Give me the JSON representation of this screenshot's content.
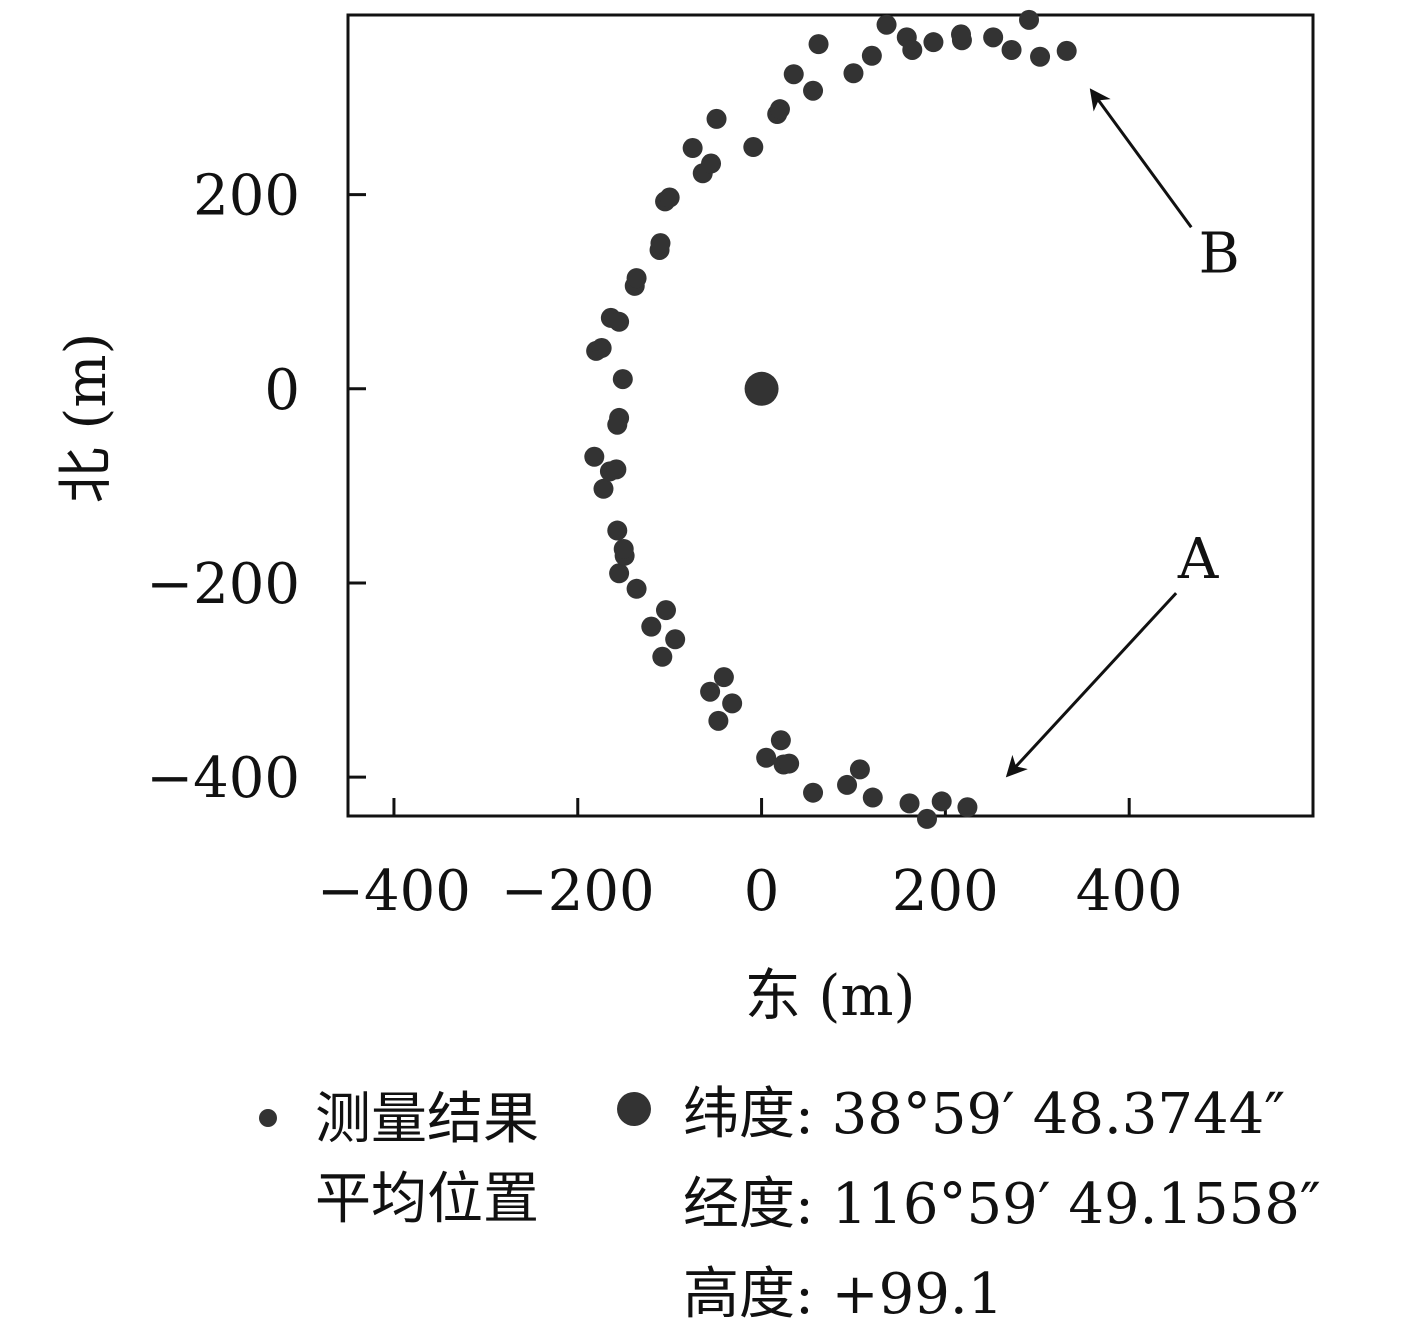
{
  "chart_data": {
    "type": "scatter",
    "xlabel": "东 (m)",
    "ylabel": "北 (m)",
    "xlim": [
      -450,
      600
    ],
    "ylim": [
      -440,
      385
    ],
    "xticks": [
      -400,
      -200,
      0,
      200,
      400
    ],
    "xtick_labels": [
      "−400",
      "−200",
      "0",
      "200",
      "400"
    ],
    "yticks": [
      -400,
      -200,
      0,
      200
    ],
    "ytick_labels": [
      "−400",
      "−200",
      "0",
      "200"
    ],
    "grid": false,
    "colors": {
      "points": "#333333",
      "axes": "#111111"
    },
    "series": [
      {
        "name": "测量结果",
        "marker": "small-dot",
        "points": [
          [
            -182,
            -70
          ],
          [
            -172,
            -103
          ],
          [
            -165,
            -85
          ],
          [
            -158,
            -83
          ],
          [
            -157,
            -146
          ],
          [
            -155,
            -190
          ],
          [
            -149,
            -172
          ],
          [
            -150,
            -165
          ],
          [
            -136,
            -206
          ],
          [
            -120,
            -245
          ],
          [
            -104,
            -228
          ],
          [
            -108,
            -276
          ],
          [
            -94,
            -258
          ],
          [
            -56,
            -312
          ],
          [
            -41,
            -297
          ],
          [
            -47,
            -342
          ],
          [
            -32,
            -324
          ],
          [
            5,
            -380
          ],
          [
            21,
            -362
          ],
          [
            24,
            -387
          ],
          [
            30,
            -386
          ],
          [
            56,
            -416
          ],
          [
            93,
            -408
          ],
          [
            107,
            -392
          ],
          [
            121,
            -421
          ],
          [
            161,
            -427
          ],
          [
            180,
            -443
          ],
          [
            196,
            -425
          ],
          [
            224,
            -431
          ],
          [
            -180,
            39
          ],
          [
            -174,
            42
          ],
          [
            -164,
            73
          ],
          [
            -155,
            69
          ],
          [
            -151,
            10
          ],
          [
            -155,
            -30
          ],
          [
            -157,
            -37
          ],
          [
            -138,
            106
          ],
          [
            -136,
            114
          ],
          [
            -111,
            143
          ],
          [
            -110,
            150
          ],
          [
            -105,
            193
          ],
          [
            -100,
            197
          ],
          [
            -75,
            248
          ],
          [
            -64,
            222
          ],
          [
            -55,
            232
          ],
          [
            -49,
            278
          ],
          [
            -9,
            249
          ],
          [
            17,
            283
          ],
          [
            20,
            288
          ],
          [
            35,
            324
          ],
          [
            56,
            307
          ],
          [
            62,
            355
          ],
          [
            100,
            325
          ],
          [
            120,
            343
          ],
          [
            136,
            375
          ],
          [
            158,
            362
          ],
          [
            164,
            349
          ],
          [
            187,
            357
          ],
          [
            218,
            359
          ],
          [
            217,
            365
          ],
          [
            252,
            362
          ],
          [
            272,
            349
          ],
          [
            291,
            380
          ],
          [
            303,
            342
          ],
          [
            332,
            348
          ]
        ]
      },
      {
        "name": "平均位置",
        "marker": "large-dot",
        "points": [
          [
            0,
            0
          ]
        ]
      }
    ],
    "annotations": [
      {
        "label": "A",
        "x": 475,
        "y": -195,
        "arrow_to": [
          268,
          -398
        ]
      },
      {
        "label": "B",
        "x": 498,
        "y": 120,
        "arrow_to": [
          359,
          307
        ]
      }
    ],
    "legend": {
      "position": "bottom",
      "items": [
        "测量结果",
        "平均位置"
      ],
      "info_lines": [
        "纬度: 38°59′  48.3744″",
        "经度: 116°59′  49.1558″",
        "高度: +99.1"
      ]
    }
  }
}
